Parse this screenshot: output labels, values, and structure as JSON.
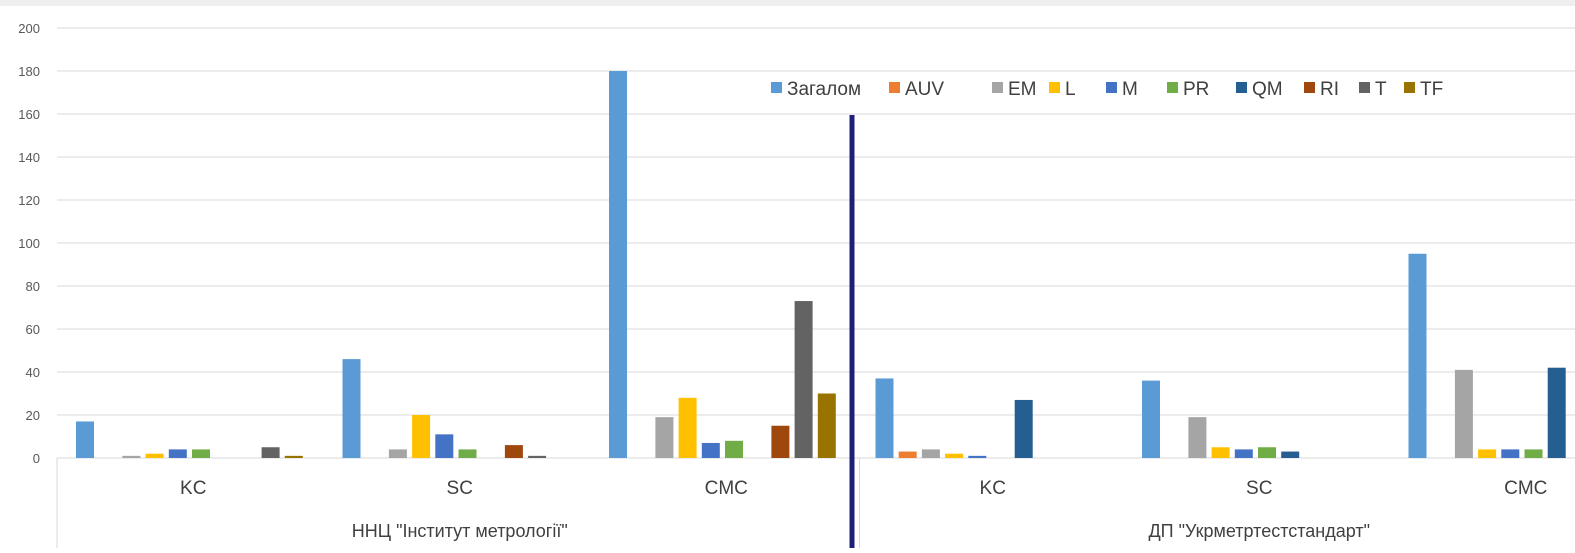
{
  "chart_data": {
    "type": "bar",
    "ylim": [
      0,
      200
    ],
    "yticks": [
      0,
      20,
      40,
      60,
      80,
      100,
      120,
      140,
      160,
      180,
      200
    ],
    "grid": true,
    "legend_position": "top-right",
    "groups": [
      {
        "label": "ННЦ \"Інститут метрології\"",
        "categories": [
          "KC",
          "SC",
          "CMC"
        ]
      },
      {
        "label": "ДП \"Укрметртестстандарт\"",
        "categories": [
          "KC",
          "SC",
          "CMC"
        ]
      }
    ],
    "categories": [
      "ННЦ \"Інститут метрології\" / KC",
      "ННЦ \"Інститут метрології\" / SC",
      "ННЦ \"Інститут метрології\" / CMC",
      "ДП \"Укрметртестстандарт\" / KC",
      "ДП \"Укрметртестстандарт\" / SC",
      "ДП \"Укрметртестстандарт\" / CMC"
    ],
    "series": [
      {
        "name": "Загалом",
        "color": "#5B9BD5",
        "values": [
          17,
          46,
          180,
          37,
          36,
          95
        ]
      },
      {
        "name": "AUV",
        "color": "#ED7D31",
        "values": [
          0,
          0,
          0,
          3,
          0,
          0
        ]
      },
      {
        "name": "EM",
        "color": "#A5A5A5",
        "values": [
          1,
          4,
          19,
          4,
          19,
          41
        ]
      },
      {
        "name": "L",
        "color": "#FFC000",
        "values": [
          2,
          20,
          28,
          2,
          5,
          4
        ]
      },
      {
        "name": "M",
        "color": "#4472C4",
        "values": [
          4,
          11,
          7,
          1,
          4,
          4
        ]
      },
      {
        "name": "PR",
        "color": "#70AD47",
        "values": [
          4,
          4,
          8,
          0,
          5,
          4
        ]
      },
      {
        "name": "QM",
        "color": "#255E91",
        "values": [
          0,
          0,
          0,
          27,
          3,
          42
        ]
      },
      {
        "name": "RI",
        "color": "#9E480E",
        "values": [
          0,
          6,
          15,
          0,
          0,
          0
        ]
      },
      {
        "name": "T",
        "color": "#636363",
        "values": [
          5,
          1,
          73,
          0,
          0,
          0
        ]
      },
      {
        "name": "TF",
        "color": "#997300",
        "values": [
          1,
          0,
          30,
          0,
          0,
          0
        ]
      }
    ]
  }
}
